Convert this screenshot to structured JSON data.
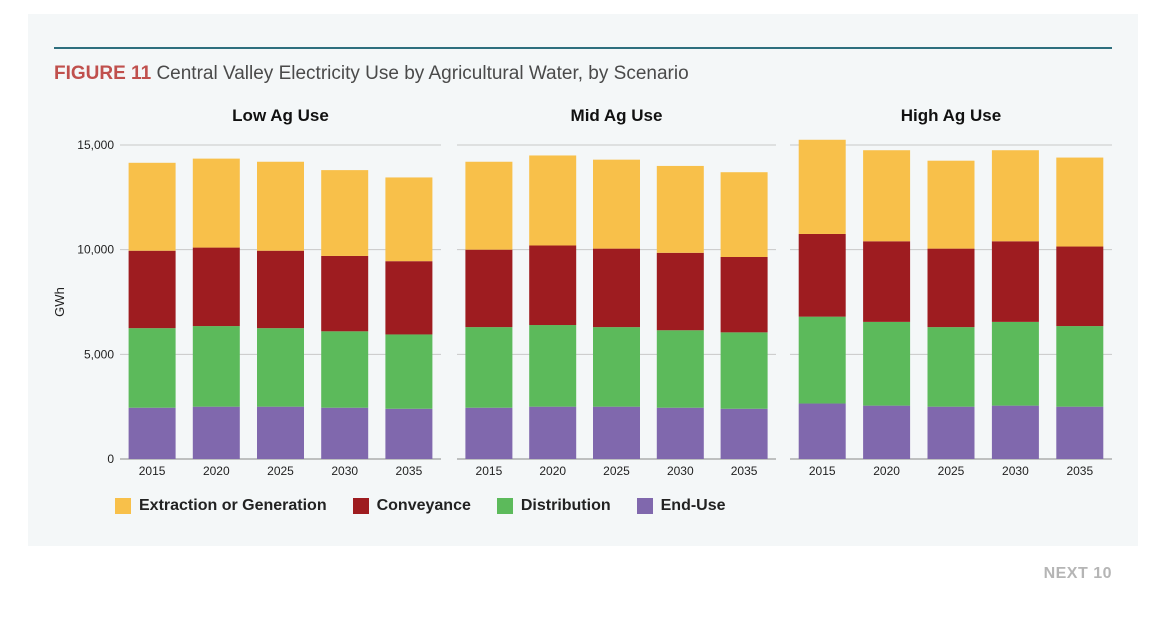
{
  "figure": {
    "label": "FIGURE 11",
    "title": "Central Valley Electricity Use by Agricultural Water, by Scenario"
  },
  "footer": "NEXT 10",
  "chart_data": {
    "type": "bar",
    "stacked": true,
    "ylabel": "GWh",
    "ylim": [
      0,
      15000
    ],
    "yticks": [
      0,
      5000,
      10000,
      15000
    ],
    "ytick_labels": [
      "0",
      "5,000",
      "10,000",
      "15,000"
    ],
    "grid": true,
    "legend_position": "bottom",
    "colors": {
      "Extraction or Generation": "#f8c04a",
      "Conveyance": "#9e1c20",
      "Distribution": "#5cba5b",
      "End-Use": "#8068ad"
    },
    "legend": [
      "Extraction or Generation",
      "Conveyance",
      "Distribution",
      "End-Use"
    ],
    "panels": [
      {
        "title": "Low Ag Use",
        "categories": [
          "2015",
          "2020",
          "2025",
          "2030",
          "2035"
        ],
        "series": [
          {
            "name": "End-Use",
            "values": [
              2450,
              2500,
              2500,
              2450,
              2400
            ]
          },
          {
            "name": "Distribution",
            "values": [
              3800,
              3850,
              3750,
              3650,
              3550
            ]
          },
          {
            "name": "Conveyance",
            "values": [
              3700,
              3750,
              3700,
              3600,
              3500
            ]
          },
          {
            "name": "Extraction or Generation",
            "values": [
              4200,
              4250,
              4250,
              4100,
              4000
            ]
          }
        ]
      },
      {
        "title": "Mid Ag Use",
        "categories": [
          "2015",
          "2020",
          "2025",
          "2030",
          "2035"
        ],
        "series": [
          {
            "name": "End-Use",
            "values": [
              2450,
              2500,
              2500,
              2450,
              2400
            ]
          },
          {
            "name": "Distribution",
            "values": [
              3850,
              3900,
              3800,
              3700,
              3650
            ]
          },
          {
            "name": "Conveyance",
            "values": [
              3700,
              3800,
              3750,
              3700,
              3600
            ]
          },
          {
            "name": "Extraction or Generation",
            "values": [
              4200,
              4300,
              4250,
              4150,
              4050
            ]
          }
        ]
      },
      {
        "title": "High Ag Use",
        "categories": [
          "2015",
          "2020",
          "2025",
          "2030",
          "2035"
        ],
        "series": [
          {
            "name": "End-Use",
            "values": [
              2650,
              2550,
              2500,
              2550,
              2500
            ]
          },
          {
            "name": "Distribution",
            "values": [
              4150,
              4000,
              3800,
              4000,
              3850
            ]
          },
          {
            "name": "Conveyance",
            "values": [
              3950,
              3850,
              3750,
              3850,
              3800
            ]
          },
          {
            "name": "Extraction or Generation",
            "values": [
              4500,
              4350,
              4200,
              4350,
              4250
            ]
          }
        ]
      }
    ]
  }
}
